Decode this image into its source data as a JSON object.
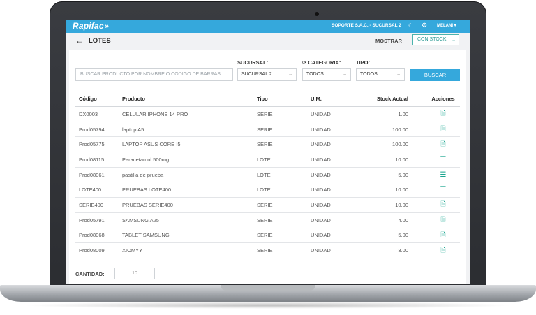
{
  "topbar": {
    "logo": "Rapifac",
    "company": "SOPORTE S.A.C. - SUCURSAL 2",
    "user": "MELANI"
  },
  "page": {
    "title": "LOTES"
  },
  "header": {
    "mostrar_label": "MOSTRAR",
    "stock_filter": "CON STOCK"
  },
  "filters": {
    "search_placeholder": "BUSCAR PRODUCTO POR NOMBRE O CODIGO DE BARRAS",
    "sucursal_label": "SUCURSAL:",
    "sucursal_value": "SUCURSAL 2",
    "categoria_label": "CATEGORIA:",
    "categoria_value": "TODOS",
    "tipo_label": "TIPO:",
    "tipo_value": "TODOS",
    "search_button": "BUSCAR"
  },
  "table": {
    "headers": [
      "Código",
      "Producto",
      "Tipo",
      "U.M.",
      "Stock Actual",
      "Acciones"
    ],
    "rows": [
      {
        "code": "DX0003",
        "product": "CELULAR IPHONE 14 PRO",
        "type": "SERIE",
        "um": "UNIDAD",
        "stock": "1.00",
        "action": "doc"
      },
      {
        "code": "Prod05794",
        "product": "laptop A5",
        "type": "SERIE",
        "um": "UNIDAD",
        "stock": "100.00",
        "action": "doc"
      },
      {
        "code": "Prod05775",
        "product": "LAPTOP ASUS CORE I5",
        "type": "SERIE",
        "um": "UNIDAD",
        "stock": "100.00",
        "action": "doc"
      },
      {
        "code": "Prod08115",
        "product": "Paracetamol 500mg",
        "type": "LOTE",
        "um": "UNIDAD",
        "stock": "10.00",
        "action": "list"
      },
      {
        "code": "Prod08061",
        "product": "pastilla de prueba",
        "type": "LOTE",
        "um": "UNIDAD",
        "stock": "5.00",
        "action": "list"
      },
      {
        "code": "LOTE400",
        "product": "PRUEBAS LOTE400",
        "type": "LOTE",
        "um": "UNIDAD",
        "stock": "10.00",
        "action": "list"
      },
      {
        "code": "SERIE400",
        "product": "PRUEBAS SERIE400",
        "type": "SERIE",
        "um": "UNIDAD",
        "stock": "10.00",
        "action": "doc"
      },
      {
        "code": "Prod05791",
        "product": "SAMSUNG A25",
        "type": "SERIE",
        "um": "UNIDAD",
        "stock": "4.00",
        "action": "doc"
      },
      {
        "code": "Prod08068",
        "product": "TABLET SAMSUNG",
        "type": "SERIE",
        "um": "UNIDAD",
        "stock": "5.00",
        "action": "doc"
      },
      {
        "code": "Prod08009",
        "product": "XIOMYY",
        "type": "SERIE",
        "um": "UNIDAD",
        "stock": "3.00",
        "action": "doc"
      }
    ]
  },
  "footer": {
    "cantidad_label": "CANTIDAD:",
    "cantidad_value": "10"
  },
  "colors": {
    "accent": "#35a8dc",
    "action_icon": "#1aa58f",
    "stock_filter": "#4bb3ad"
  },
  "icons": {
    "back": "arrow-left-icon",
    "theme": "moon-icon",
    "settings": "gear-icon",
    "refresh": "refresh-icon",
    "serie_action": "document-search-icon",
    "lote_action": "list-icon"
  }
}
